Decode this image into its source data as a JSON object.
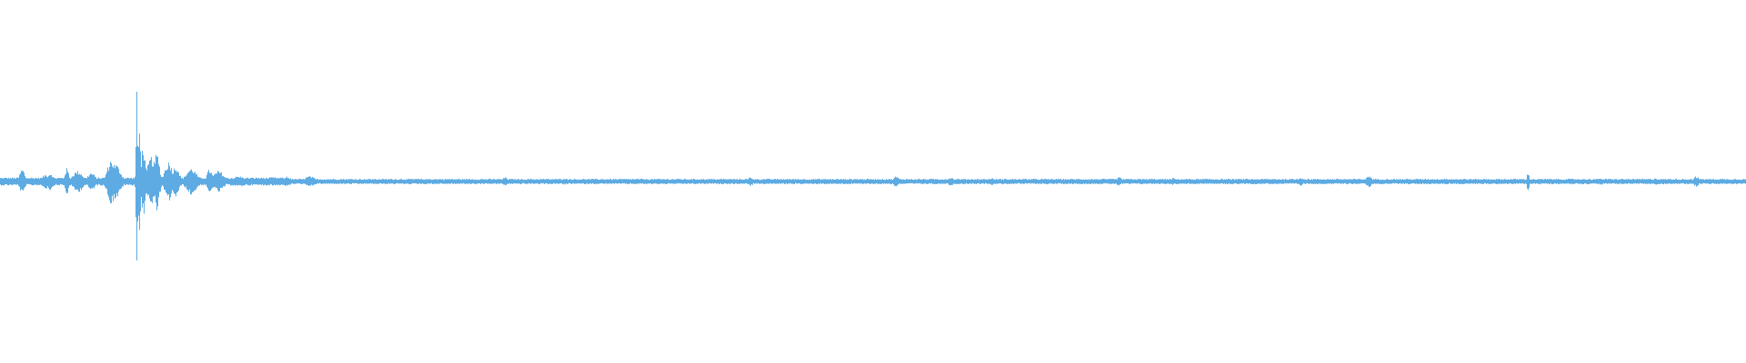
{
  "waveform": {
    "color": "#5dabe2",
    "background": "#ffffff",
    "peak_position_fraction": 0.078
  }
}
